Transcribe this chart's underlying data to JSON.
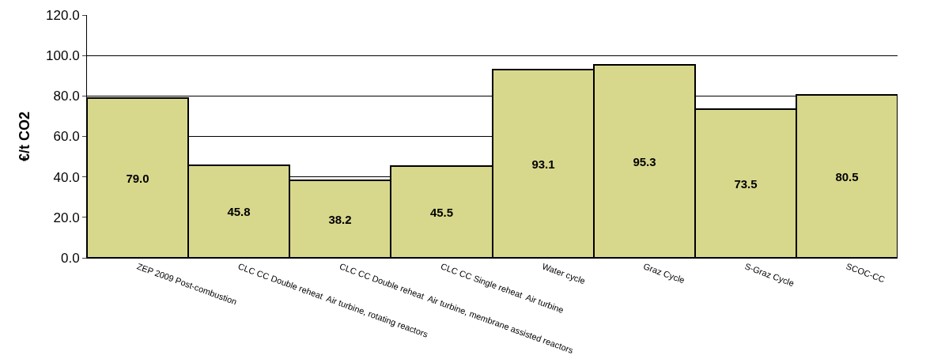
{
  "chart_data": {
    "type": "bar",
    "ylabel": "€/t CO2",
    "categories": [
      "ZEP 2009 Post-combustion",
      "CLC CC Double reheat  Air turbine, rotating reactors",
      "CLC CC Double reheat  Air turbine, membrane assisted reactors",
      "CLC CC Single reheat  Air turbine",
      "Water cycle",
      "Graz Cycle",
      "S-Graz Cycle",
      "SCOC-CC"
    ],
    "values": [
      79.0,
      45.8,
      38.2,
      45.5,
      93.1,
      95.3,
      73.5,
      80.5
    ],
    "color": "#d8d88c",
    "ylim": [
      0,
      120
    ],
    "yticks": [
      {
        "value": 0,
        "label": "0.0"
      },
      {
        "value": 20,
        "label": "20.0"
      },
      {
        "value": 40,
        "label": "40.0"
      },
      {
        "value": 60,
        "label": "60.0"
      },
      {
        "value": 80,
        "label": "80.0"
      },
      {
        "value": 100,
        "label": "100.0"
      },
      {
        "value": 120,
        "label": "120.0"
      }
    ],
    "value_labels": [
      "79.0",
      "45.8",
      "38.2",
      "45.5",
      "93.1",
      "95.3",
      "73.5",
      "80.5"
    ],
    "grid": "y"
  }
}
